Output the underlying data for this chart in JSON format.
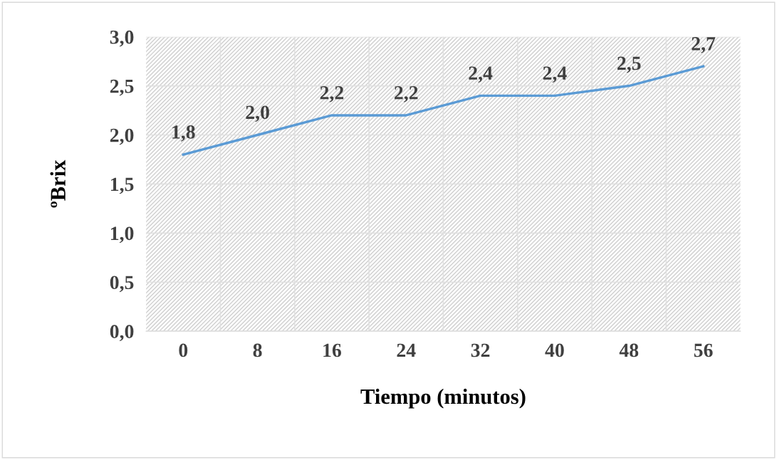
{
  "chart_data": {
    "type": "line",
    "xlabel": "Tiempo (minutos)",
    "ylabel": "ºBrix",
    "categories": [
      "0",
      "8",
      "16",
      "24",
      "32",
      "40",
      "48",
      "56"
    ],
    "series": [
      {
        "color": "#5b9bd5",
        "values": [
          1.8,
          2.0,
          2.2,
          2.2,
          2.4,
          2.4,
          2.5,
          2.7
        ],
        "value_labels": [
          "1,8",
          "2,0",
          "2,2",
          "2,2",
          "2,4",
          "2,4",
          "2,5",
          "2,7"
        ]
      }
    ],
    "ylim": [
      0,
      3
    ],
    "yticks": [
      {
        "value": 0,
        "label": "0,0"
      },
      {
        "value": 0.5,
        "label": "0,5"
      },
      {
        "value": 1,
        "label": "1,0"
      },
      {
        "value": 1.5,
        "label": "1,5"
      },
      {
        "value": 2,
        "label": "2,0"
      },
      {
        "value": 2.5,
        "label": "2,5"
      },
      {
        "value": 3,
        "label": "3,0"
      }
    ],
    "grid": true,
    "marker": "none",
    "line_style": "solid"
  }
}
